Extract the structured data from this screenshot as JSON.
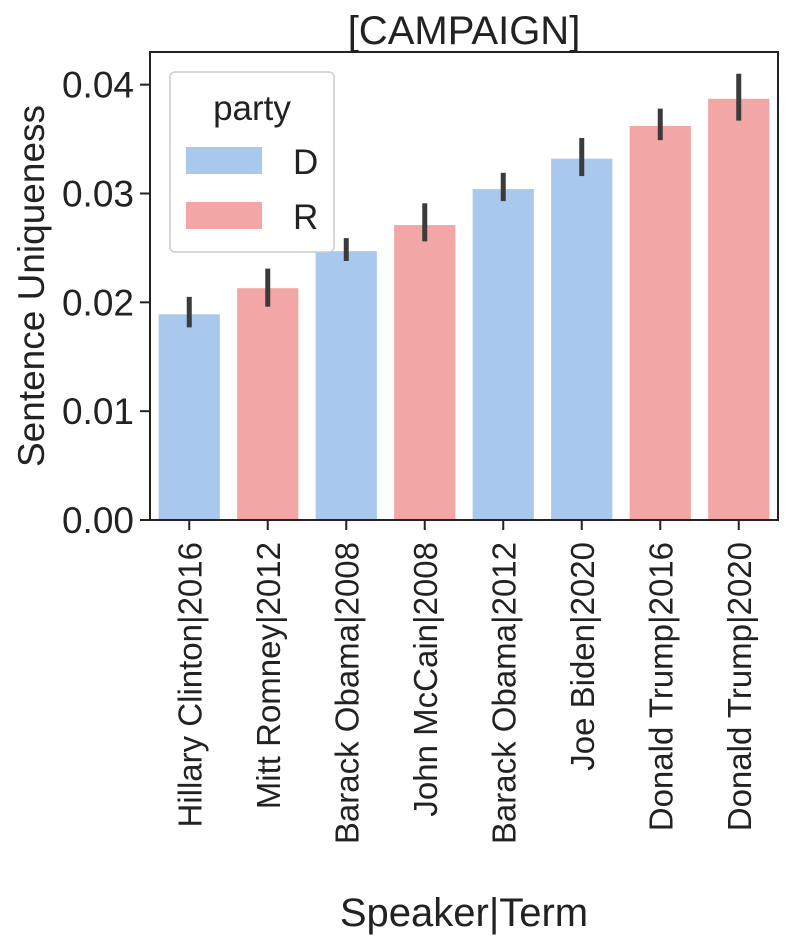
{
  "chart_data": {
    "type": "bar",
    "title": "[CAMPAIGN]",
    "xlabel": "Speaker|Term",
    "ylabel": "Sentence Uniqueness",
    "ylim": [
      0,
      0.043
    ],
    "yticks": [
      0.0,
      0.01,
      0.02,
      0.03,
      0.04
    ],
    "ytick_labels": [
      "0.00",
      "0.01",
      "0.02",
      "0.03",
      "0.04"
    ],
    "categories": [
      "Hillary Clinton|2016",
      "Mitt Romney|2012",
      "Barack Obama|2008",
      "John McCain|2008",
      "Barack Obama|2012",
      "Joe Biden|2020",
      "Donald Trump|2016",
      "Donald Trump|2020"
    ],
    "values": [
      0.0189,
      0.0213,
      0.0247,
      0.0271,
      0.0304,
      0.0332,
      0.0362,
      0.0387
    ],
    "error_low": [
      0.0177,
      0.0196,
      0.0238,
      0.0256,
      0.0293,
      0.0316,
      0.0349,
      0.0367
    ],
    "error_high": [
      0.0205,
      0.0231,
      0.0259,
      0.0291,
      0.0319,
      0.0351,
      0.0378,
      0.041
    ],
    "party": [
      "D",
      "R",
      "D",
      "R",
      "D",
      "D",
      "R",
      "R"
    ],
    "legend": {
      "title": "party",
      "position": "top-left",
      "entries": [
        {
          "label": "D",
          "color": "#a8c8ee"
        },
        {
          "label": "R",
          "color": "#f2a6a6"
        }
      ]
    },
    "colors": {
      "D": "#a8c8ee",
      "R": "#f2a6a6",
      "error_bar": "#3b3b3b",
      "axis": "#222222"
    },
    "grid": false
  }
}
